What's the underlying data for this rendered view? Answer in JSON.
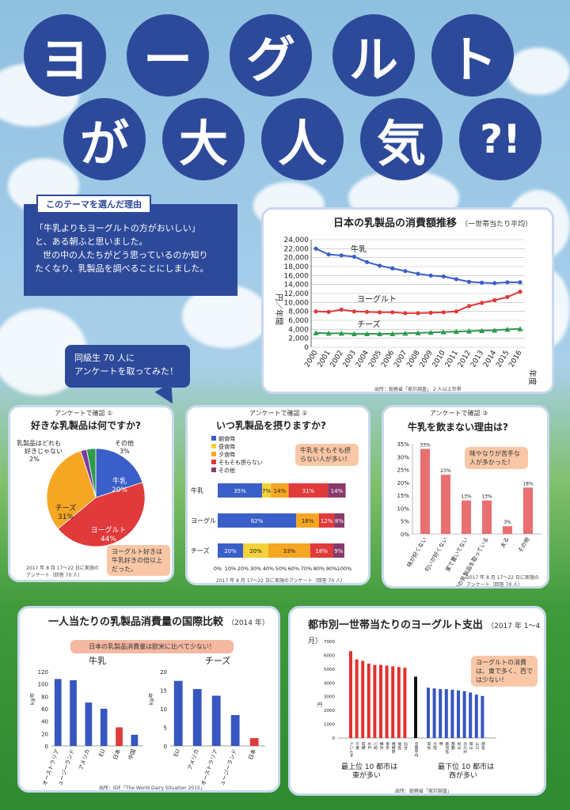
{
  "title": {
    "row1": [
      "ヨ",
      "ー",
      "グ",
      "ル",
      "ト"
    ],
    "row2": [
      "が",
      "大",
      "人",
      "気",
      "?!"
    ]
  },
  "reason": {
    "tab": "このテーマを選んだ理由",
    "lines": [
      "「牛乳よりもヨーグルトの方がおいしい」",
      "と、ある朝ふと思いました。",
      "世の中の人たちがどう思っているのか知り",
      "たくなり、乳製品を調べることにしました。"
    ]
  },
  "survey_bubble": [
    "同級生 70 人に",
    "アンケートを取ってみた！"
  ],
  "consumption": {
    "title": "日本の乳製品の消費額推移",
    "subtitle": "（一世帯当たり平均）",
    "ylabel": "円／年間",
    "xlabel": "年度",
    "source": "出所：総務省「家計調査」 2 人以上世帯",
    "series_labels": [
      "牛乳",
      "ヨーグルト",
      "チーズ"
    ]
  },
  "survey1": {
    "header": "アンケートで確認 ①",
    "question": "好きな乳製品は何ですか?",
    "callout": [
      "ヨーグルト好きは",
      "牛乳好きの倍以上",
      "だった。"
    ],
    "note": [
      "2017 年 8 月 17～22 日に実施の",
      "アンケート（回答 70 人）"
    ]
  },
  "survey2": {
    "header": "アンケートで確認 ②",
    "question": "いつ乳製品を摂りますか?",
    "legend": [
      "朝食時",
      "昼食時",
      "夕食時",
      "そもそも摂らない",
      "その他"
    ],
    "callout": [
      "牛乳をそもそも摂",
      "らない人が多い！"
    ],
    "note": "2017 年 8 月 17～22 日に実施のアンケート（回答 70 人）"
  },
  "survey3": {
    "header": "アンケートで確認 ③",
    "question": "牛乳を飲まない理由は?",
    "callout": [
      "味やなりが苦手な",
      "人が多かった！"
    ],
    "note": [
      "2017 年 8 月 17～22 日に実施の",
      "アンケート（回答 70 人）"
    ]
  },
  "international": {
    "title": "一人当たりの乳製品消費量の国際比較",
    "year": "（2014 年）",
    "banner": "日本の乳製品消費量は欧米に比べて少ない！",
    "milk_label": "牛乳",
    "cheese_label": "チーズ",
    "unit": "kg/年",
    "source": "出所：IDF「The World Dairy Situation 2015」"
  },
  "city": {
    "title": "都市別一世帯当たりのヨーグルト支出",
    "period": "（2017 年 1～4 月）",
    "unit": "円",
    "callout": [
      "ヨーグルトの消費",
      "は、東で多く、西で",
      "は少ない！"
    ],
    "top_caption": [
      "最上位 10 都市は",
      "東が多い"
    ],
    "bottom_caption": [
      "最下位 10 都市は",
      "西が多い"
    ],
    "avg_label": "全国平均",
    "top_cities": "さいたま・千葉・前橋・水戸・川崎・横浜・東京・相模原・福島・仙台",
    "bottom_cities": "高松・大阪・堺・鹿児島・那覇・松山・北九州・岡山・山口・徳島",
    "source": "出所：総務省「家計調査」"
  },
  "colors": {
    "navy": "#2d4a9a",
    "milk": "#3a5fc8",
    "yogurt": "#e03a3a",
    "cheese": "#2e9a4e",
    "orange": "#f5a623",
    "red_bar": "#e87070",
    "blue_bar": "#3656c0"
  },
  "chart_data": [
    {
      "type": "line",
      "title": "日本の乳製品の消費額推移",
      "x": [
        "2000",
        "2001",
        "2002",
        "2003",
        "2004",
        "2005",
        "2006",
        "2007",
        "2008",
        "2009",
        "2010",
        "2011",
        "2012",
        "2013",
        "2014",
        "2015",
        "2016"
      ],
      "ylim": [
        0,
        24000
      ],
      "yticks": [
        0,
        2000,
        4000,
        6000,
        8000,
        10000,
        12000,
        14000,
        16000,
        18000,
        20000,
        22000,
        24000
      ],
      "ylabel": "円／年間",
      "xlabel": "年度",
      "series": [
        {
          "name": "牛乳",
          "values": [
            22000,
            20700,
            20500,
            20200,
            19000,
            18200,
            17600,
            17000,
            16400,
            16000,
            15800,
            15200,
            14600,
            14400,
            14300,
            14500,
            14500
          ]
        },
        {
          "name": "ヨーグルト",
          "values": [
            8000,
            7900,
            8400,
            8000,
            7900,
            7800,
            7800,
            7600,
            7600,
            7700,
            7800,
            8000,
            9200,
            9900,
            10500,
            11200,
            12400
          ]
        },
        {
          "name": "チーズ",
          "values": [
            3200,
            3100,
            3100,
            3000,
            3000,
            3000,
            3000,
            3100,
            3200,
            3300,
            3400,
            3500,
            3600,
            3700,
            3800,
            4000,
            4100
          ]
        }
      ]
    },
    {
      "type": "pie",
      "slices": [
        {
          "label": "牛乳",
          "value": 20,
          "color": "#3a5fc8"
        },
        {
          "label": "ヨーグルト",
          "value": 44,
          "color": "#e03a3a"
        },
        {
          "label": "チーズ",
          "value": 31,
          "color": "#f5a623"
        },
        {
          "label": "乳製品はどれも好きじゃない",
          "value": 2,
          "color": "#7a3aa0"
        },
        {
          "label": "その他",
          "value": 3,
          "color": "#2e9a4e"
        }
      ]
    },
    {
      "type": "bar",
      "stacked": true,
      "categories": [
        "牛乳",
        "ヨーグルト",
        "チーズ"
      ],
      "series": [
        {
          "name": "朝食時",
          "values": [
            35,
            62,
            20
          ],
          "color": "#3a5fc8"
        },
        {
          "name": "昼食時",
          "values": [
            7,
            0,
            20
          ],
          "color": "#f3d23a"
        },
        {
          "name": "夕食時",
          "values": [
            14,
            18,
            33
          ],
          "color": "#f5a623"
        },
        {
          "name": "そもそも摂らない",
          "values": [
            31,
            12,
            18
          ],
          "color": "#e03a3a"
        },
        {
          "name": "その他",
          "values": [
            14,
            8,
            9
          ],
          "color": "#8a3a6a"
        }
      ],
      "xticks": [
        "0%",
        "10%",
        "20%",
        "30%",
        "40%",
        "50%",
        "60%",
        "70%",
        "80%",
        "90%",
        "100%"
      ]
    },
    {
      "type": "bar",
      "categories": [
        "味が好くない",
        "匂いが好くない",
        "家で置いてない",
        "他の乳製品を取っている",
        "太る",
        "その他"
      ],
      "values": [
        33,
        23,
        13,
        13,
        3,
        18
      ],
      "ylim": [
        0,
        35
      ],
      "yticks": [
        "0%",
        "5%",
        "10%",
        "15%",
        "20%",
        "25%",
        "30%",
        "35%"
      ]
    },
    {
      "type": "bar",
      "title": "牛乳",
      "categories": [
        "オーストラリア",
        "ニュージーランド",
        "アメリカ",
        "EU",
        "日本",
        "中国"
      ],
      "values": [
        108,
        106,
        70,
        60,
        30,
        18
      ],
      "ylim": [
        0,
        120
      ],
      "yticks": [
        0,
        20,
        40,
        60,
        80,
        100,
        120
      ]
    },
    {
      "type": "bar",
      "title": "チーズ",
      "categories": [
        "EU",
        "アメリカ",
        "オーストラリア",
        "ニュージーランド",
        "日本"
      ],
      "values": [
        17.5,
        15.3,
        13.5,
        8.3,
        2.1
      ],
      "ylim": [
        0,
        20
      ],
      "yticks": [
        0,
        5,
        10,
        15,
        20
      ]
    },
    {
      "type": "bar",
      "ylim": [
        0,
        7000
      ],
      "yticks": [
        0,
        1000,
        2000,
        3000,
        4000,
        5000,
        6000,
        7000
      ],
      "top": [
        6300,
        5700,
        5600,
        5400,
        5300,
        5300,
        5250,
        5200,
        5150,
        5100
      ],
      "average": 4450,
      "bottom": [
        3650,
        3600,
        3550,
        3550,
        3500,
        3450,
        3400,
        3300,
        3150,
        3050
      ]
    }
  ]
}
